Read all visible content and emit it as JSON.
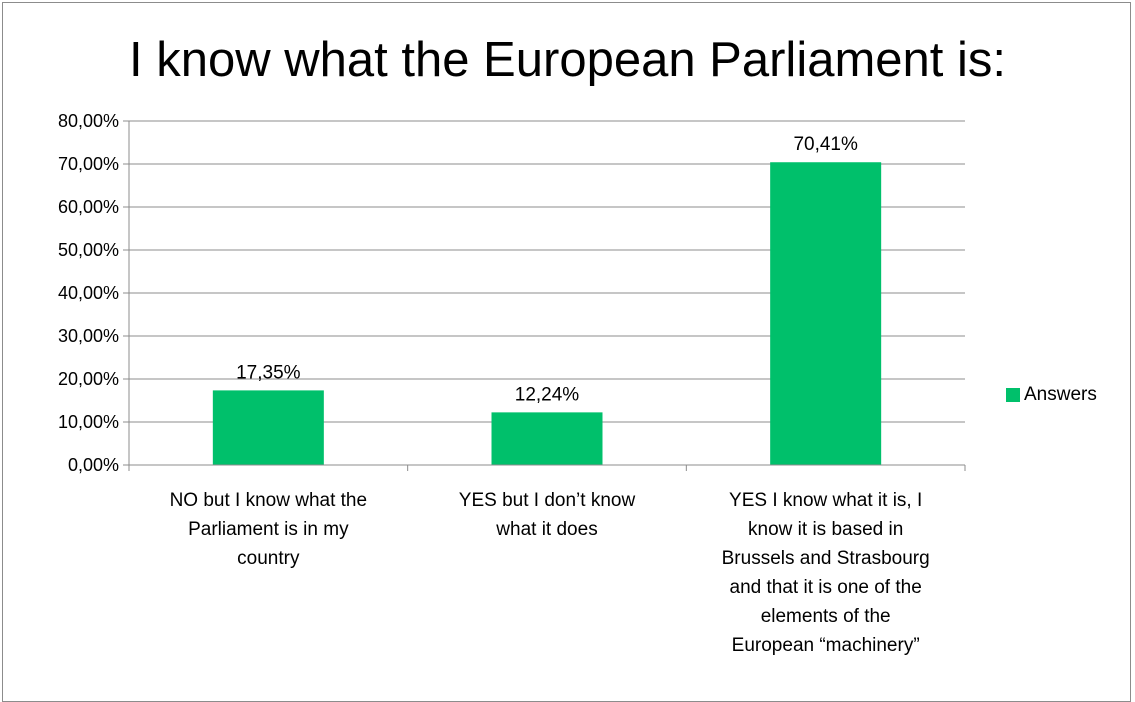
{
  "chart_data": {
    "type": "bar",
    "title": "I know what the European Parliament is:",
    "categories": [
      "NO but I know what the Parliament is in my country",
      "YES but I don’t know what it does",
      "YES I know what it is, I know it is based in Brussels and Strasbourg and that it is one of the elements of the European “machinery”"
    ],
    "category_label_lines": [
      [
        "NO but I know what the",
        "Parliament is in my",
        "country"
      ],
      [
        "YES but I don’t know",
        "what it does"
      ],
      [
        "YES I know what it is, I",
        "know it is based in",
        "Brussels and Strasbourg",
        "and that it is one of the",
        "elements of the",
        "European “machinery”"
      ]
    ],
    "series": [
      {
        "name": "Answers",
        "values": [
          17.35,
          12.24,
          70.41
        ],
        "color": "#00c06b"
      }
    ],
    "data_labels": [
      "17,35%",
      "12,24%",
      "70,41%"
    ],
    "ylim": [
      0,
      80
    ],
    "y_ticks": [
      0,
      10,
      20,
      30,
      40,
      50,
      60,
      70,
      80
    ],
    "y_tick_labels": [
      "0,00%",
      "10,00%",
      "20,00%",
      "30,00%",
      "40,00%",
      "50,00%",
      "60,00%",
      "70,00%",
      "80,00%"
    ],
    "xlabel": "",
    "ylabel": "",
    "grid": true,
    "legend_position": "right"
  }
}
